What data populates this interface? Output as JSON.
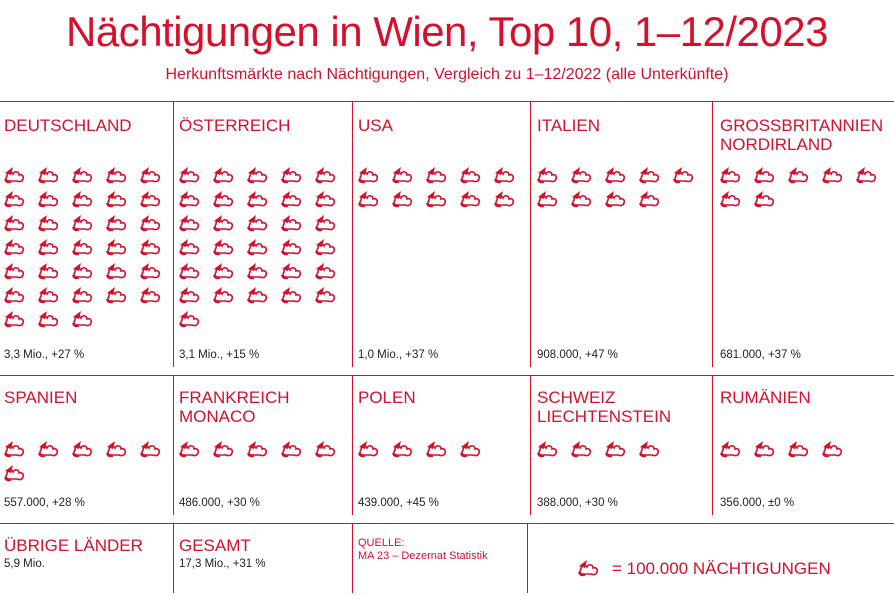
{
  "title": "Nächtigungen in Wien, Top 10, 1–12/2023",
  "subtitle": "Herkunftsmärkte nach Nächtigungen, Vergleich zu 1–12/2022 (alle Unterkünfte)",
  "colors": {
    "accent": "#d6102a",
    "text_dark": "#222222"
  },
  "icon_name": "bed-night-icon",
  "chart_data": {
    "type": "table",
    "unit_per_icon": 100000,
    "rows": [
      {
        "name": "DEUTSCHLAND",
        "icons": 33,
        "value_label": "3,3 Mio., +27 %"
      },
      {
        "name": "ÖSTERREICH",
        "icons": 31,
        "value_label": "3,1 Mio., +15 %"
      },
      {
        "name": "USA",
        "icons": 10,
        "value_label": "1,0 Mio., +37 %"
      },
      {
        "name": "ITALIEN",
        "icons": 9,
        "value_label": "908.000, +47 %"
      },
      {
        "name": "GROSSBRITANNIEN\nNORDIRLAND",
        "icons": 7,
        "value_label": "681.000, +37 %"
      },
      {
        "name": "SPANIEN",
        "icons": 6,
        "value_label": "557.000, +28 %"
      },
      {
        "name": "FRANKREICH\nMONACO",
        "icons": 5,
        "value_label": "486.000, +30 %"
      },
      {
        "name": "POLEN",
        "icons": 4,
        "value_label": "439.000, +45 %"
      },
      {
        "name": "SCHWEIZ\nLIECHTENSTEIN",
        "icons": 4,
        "value_label": "388.000, +30 %"
      },
      {
        "name": "RUMÄNIEN",
        "icons": 4,
        "value_label": "356.000, ±0 %"
      }
    ]
  },
  "bottom": {
    "other": {
      "label": "ÜBRIGE LÄNDER",
      "value": "5,9 Mio."
    },
    "total": {
      "label": "GESAMT",
      "value": "17,3 Mio., +31 %"
    },
    "source": {
      "label": "QUELLE:",
      "value": "MA 23 – Dezernat Statistik"
    },
    "legend": "= 100.000 NÄCHTIGUNGEN"
  }
}
